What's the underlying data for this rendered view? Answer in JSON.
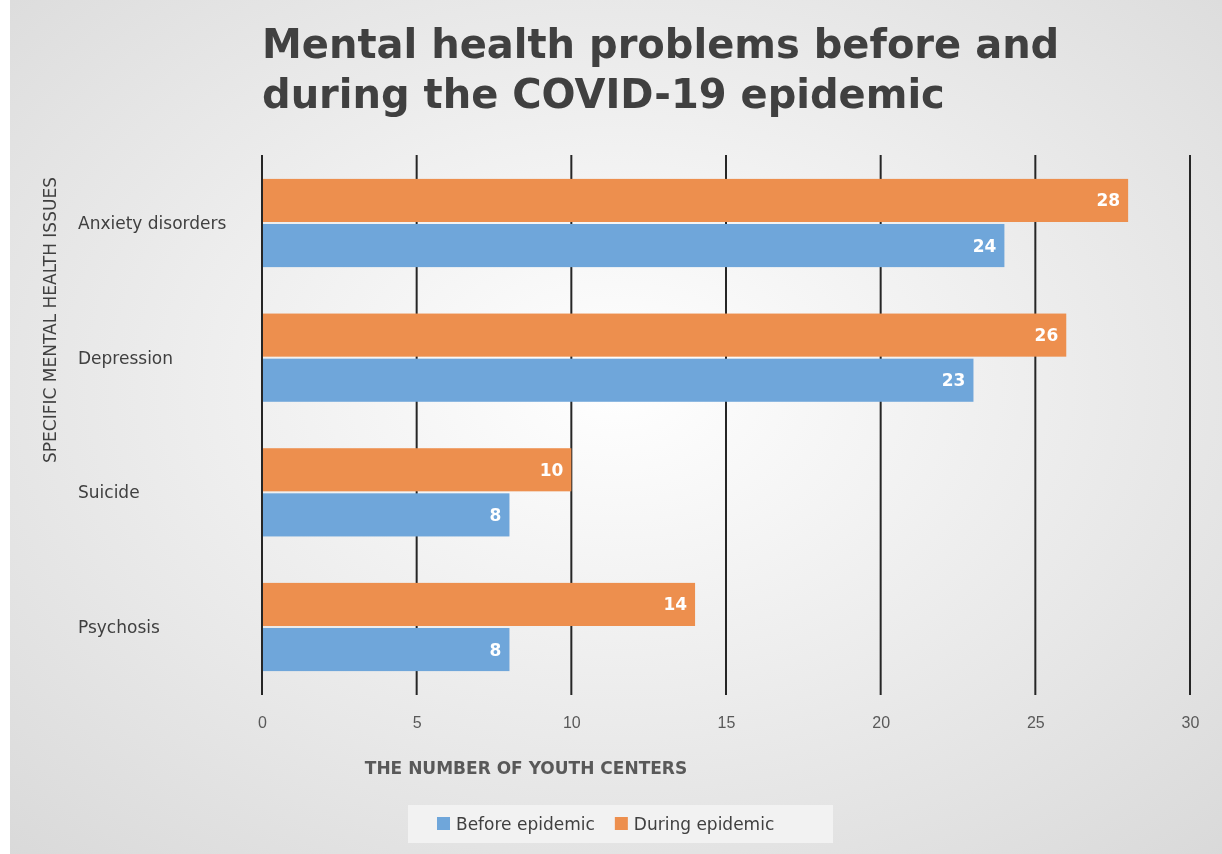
{
  "chart_data": {
    "type": "bar",
    "orientation": "horizontal",
    "title": "Mental health problems before and during the COVID-19 epidemic",
    "xlabel": "THE NUMBER OF YOUTH CENTERS",
    "ylabel": "SPECIFIC MENTAL HEALTH ISSUES",
    "categories": [
      "Anxiety disorders",
      "Depression",
      "Suicide",
      "Psychosis"
    ],
    "series": [
      {
        "name": "Before epidemic",
        "color": "#6fa6da",
        "values": [
          24,
          23,
          8,
          8
        ]
      },
      {
        "name": "During epidemic",
        "color": "#ed8f4e",
        "values": [
          28,
          26,
          10,
          14
        ]
      }
    ],
    "xlim": [
      0,
      30
    ],
    "xticks": [
      0,
      5,
      10,
      15,
      20,
      25,
      30
    ],
    "grid": "x",
    "legend": "bottom",
    "data_labels": true
  }
}
